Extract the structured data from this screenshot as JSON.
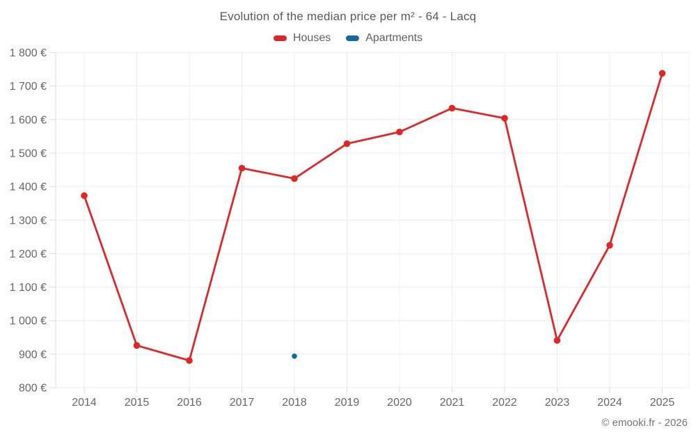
{
  "header": {
    "title": "Evolution of the median price per m² - 64 - Lacq"
  },
  "legend": [
    {
      "label": "Houses",
      "color": "#e02626"
    },
    {
      "label": "Apartments",
      "color": "#0f6d9d"
    }
  ],
  "footer": {
    "credit": "© emooki.fr - 2026"
  },
  "chart_data": {
    "type": "line",
    "title": "Evolution of the median price per m² - 64 - Lacq",
    "xlabel": "",
    "ylabel": "",
    "x": [
      2014,
      2015,
      2016,
      2017,
      2018,
      2019,
      2020,
      2021,
      2022,
      2023,
      2024,
      2025
    ],
    "x_tick_labels": [
      "2014",
      "2015",
      "2016",
      "2017",
      "2018",
      "2019",
      "2020",
      "2021",
      "2022",
      "2023",
      "2024",
      "2025"
    ],
    "ylim": [
      800,
      1800
    ],
    "y_ticks": [
      800,
      900,
      1000,
      1100,
      1200,
      1300,
      1400,
      1500,
      1600,
      1700,
      1800
    ],
    "y_tick_labels": [
      "800 €",
      "900 €",
      "1 000 €",
      "1 100 €",
      "1 200 €",
      "1 300 €",
      "1 400 €",
      "1 500 €",
      "1 600 €",
      "1 700 €",
      "1 800 €"
    ],
    "grid": true,
    "legend_position": "top",
    "series": [
      {
        "name": "Houses",
        "color": "#e02626",
        "points": [
          [
            2014,
            1373
          ],
          [
            2015,
            926
          ],
          [
            2016,
            881
          ],
          [
            2017,
            1455
          ],
          [
            2018,
            1424
          ],
          [
            2019,
            1528
          ],
          [
            2020,
            1563
          ],
          [
            2021,
            1634
          ],
          [
            2022,
            1604
          ],
          [
            2023,
            941
          ],
          [
            2024,
            1225
          ],
          [
            2025,
            1738
          ]
        ]
      },
      {
        "name": "Apartments",
        "color": "#0f6d9d",
        "points": [
          [
            2018,
            894
          ]
        ]
      }
    ]
  }
}
